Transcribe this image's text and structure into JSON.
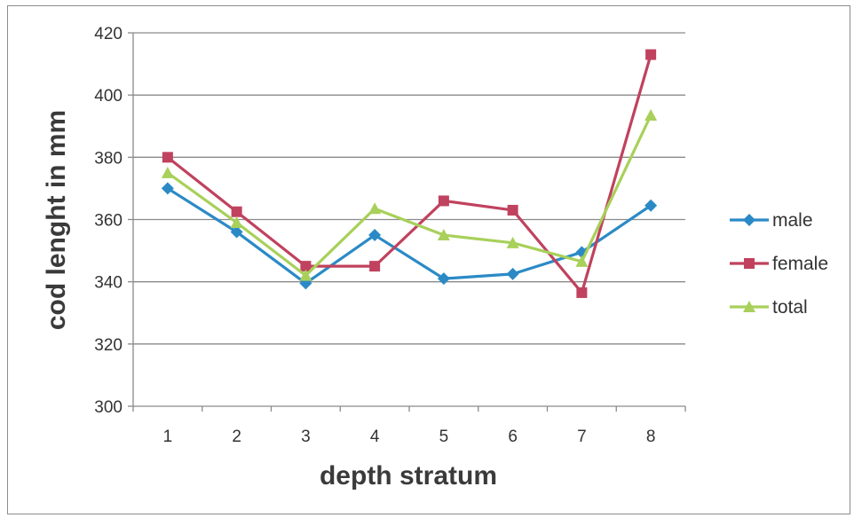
{
  "chart_data": {
    "type": "line",
    "categories": [
      "1",
      "2",
      "3",
      "4",
      "5",
      "6",
      "7",
      "8"
    ],
    "xlabel": "depth stratum",
    "ylabel": "cod lenght in mm",
    "ylim": [
      300,
      420
    ],
    "yticks": [
      "300",
      "320",
      "340",
      "360",
      "380",
      "400",
      "420"
    ],
    "grid": "horizontal",
    "legend_position": "right",
    "series": [
      {
        "name": "male",
        "color": "#2b8ac6",
        "marker": "diamond",
        "values": [
          370,
          356,
          339.5,
          355,
          341,
          342.5,
          349.5,
          364.5
        ]
      },
      {
        "name": "female",
        "color": "#c0425e",
        "marker": "square",
        "values": [
          380,
          362.5,
          345,
          345,
          366,
          363,
          336.5,
          413
        ]
      },
      {
        "name": "total",
        "color": "#a8d05a",
        "marker": "triangle",
        "values": [
          375,
          359,
          342,
          363.5,
          355,
          352.5,
          346.5,
          393.5
        ]
      }
    ]
  }
}
